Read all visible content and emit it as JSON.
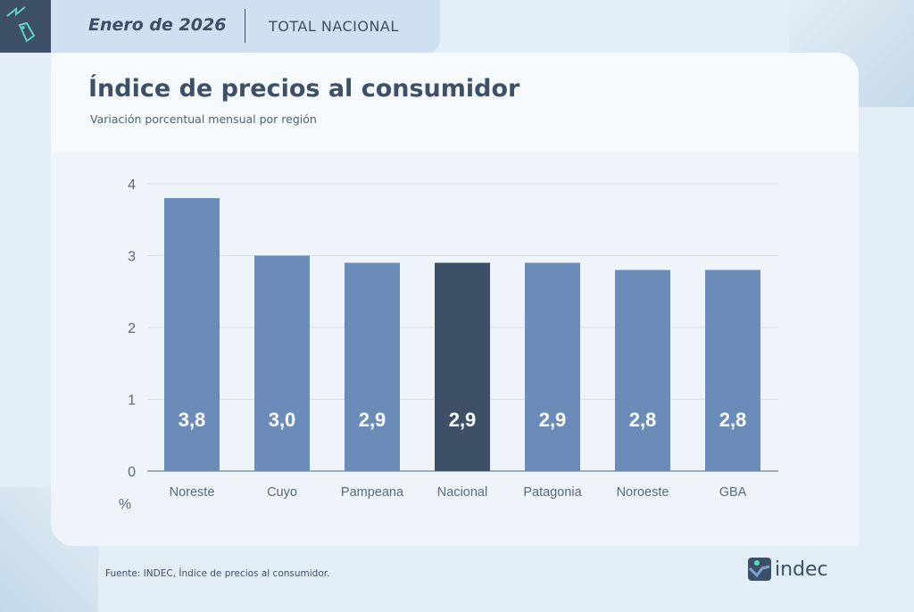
{
  "header": {
    "date": "Enero de 2026",
    "scope": "TOTAL NACIONAL"
  },
  "title": "Índice de precios al consumidor",
  "subtitle": "Variación porcentual mensual por región",
  "source": "Fuente: INDEC, Índice de precios al consumidor.",
  "logo": {
    "text": "indec"
  },
  "colors": {
    "bar": "#6b8cb8",
    "highlight": "#3d5068",
    "text": "#3d5068"
  },
  "chart_data": {
    "type": "bar",
    "categories": [
      "Noreste",
      "Cuyo",
      "Pampeana",
      "Nacional",
      "Patagonia",
      "Noroeste",
      "GBA"
    ],
    "values": [
      3.8,
      3.0,
      2.9,
      2.9,
      2.9,
      2.8,
      2.8
    ],
    "data_labels": [
      "3,8",
      "3,0",
      "2,9",
      "2,9",
      "2,9",
      "2,8",
      "2,8"
    ],
    "highlight": "Nacional",
    "ylabel": "%",
    "ylim": [
      0,
      4
    ],
    "yticks": [
      "0",
      "1",
      "2",
      "3",
      "4"
    ],
    "grid": true
  }
}
